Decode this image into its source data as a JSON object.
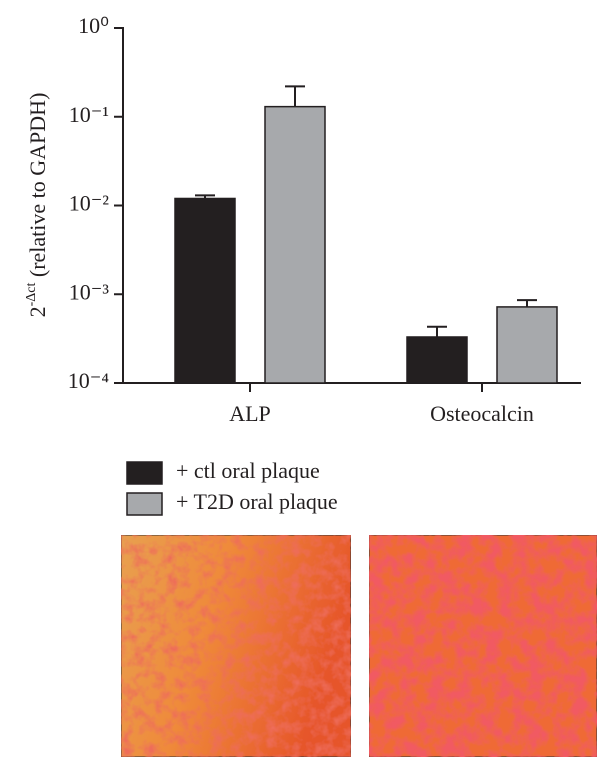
{
  "chart_data": {
    "type": "bar",
    "log_y": true,
    "ylabel": {
      "base": "2",
      "exponent": "-Δct",
      "text": " (relative to GAPDH)"
    },
    "categories": [
      "ALP",
      "Osteocalcin"
    ],
    "series": [
      {
        "name": "+ ctl oral plaque",
        "color": "#231f20",
        "values": [
          0.012,
          0.00033
        ],
        "errors": [
          0.001,
          0.0001
        ]
      },
      {
        "name": "+ T2D oral plaque",
        "color": "#a7a9ac",
        "values": [
          0.13,
          0.00072
        ],
        "errors": [
          0.09,
          0.00014
        ]
      }
    ],
    "ylim": [
      0.0001,
      1
    ],
    "yticks": [
      {
        "value": 1,
        "label": "10⁰"
      },
      {
        "value": 0.1,
        "label": "10⁻¹"
      },
      {
        "value": 0.01,
        "label": "10⁻²"
      },
      {
        "value": 0.001,
        "label": "10⁻³"
      },
      {
        "value": 0.0001,
        "label": "10⁻⁴"
      }
    ],
    "grid": false
  }
}
